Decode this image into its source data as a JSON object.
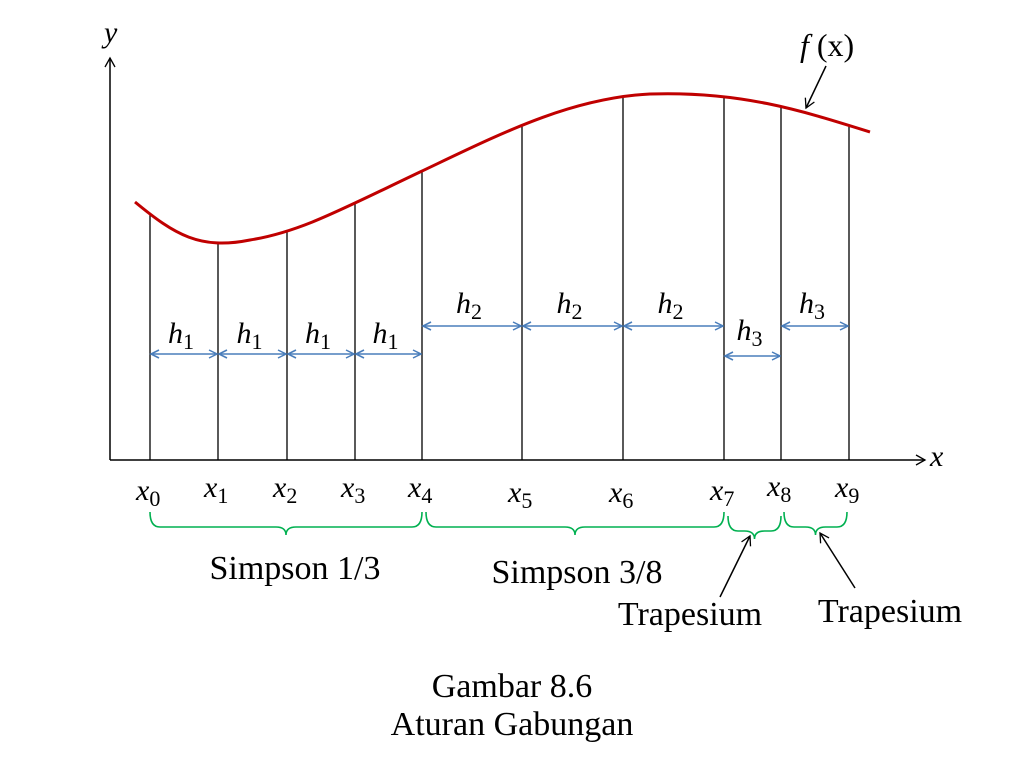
{
  "axes": {
    "x_label": "x",
    "y_label": "y"
  },
  "function_label": {
    "name": "f",
    "arg": "(x)"
  },
  "nodes": [
    {
      "base": "x",
      "sub": "0"
    },
    {
      "base": "x",
      "sub": "1"
    },
    {
      "base": "x",
      "sub": "2"
    },
    {
      "base": "x",
      "sub": "3"
    },
    {
      "base": "x",
      "sub": "4"
    },
    {
      "base": "x",
      "sub": "5"
    },
    {
      "base": "x",
      "sub": "6"
    },
    {
      "base": "x",
      "sub": "7"
    },
    {
      "base": "x",
      "sub": "8"
    },
    {
      "base": "x",
      "sub": "9"
    }
  ],
  "intervals": [
    {
      "base": "h",
      "sub": "1"
    },
    {
      "base": "h",
      "sub": "1"
    },
    {
      "base": "h",
      "sub": "1"
    },
    {
      "base": "h",
      "sub": "1"
    },
    {
      "base": "h",
      "sub": "2"
    },
    {
      "base": "h",
      "sub": "2"
    },
    {
      "base": "h",
      "sub": "2"
    },
    {
      "base": "h",
      "sub": "3"
    },
    {
      "base": "h",
      "sub": "3"
    }
  ],
  "rules": [
    {
      "label": "Simpson 1/3"
    },
    {
      "label": "Simpson 3/8"
    },
    {
      "label": "Trapesium"
    },
    {
      "label": "Trapesium"
    }
  ],
  "caption": {
    "number": "Gambar 8.6",
    "title": "Aturan Gabungan"
  },
  "colors": {
    "curve": "#c00000",
    "interval_arrow": "#4a7ebb",
    "brace": "#00b050",
    "axis": "#000000"
  }
}
